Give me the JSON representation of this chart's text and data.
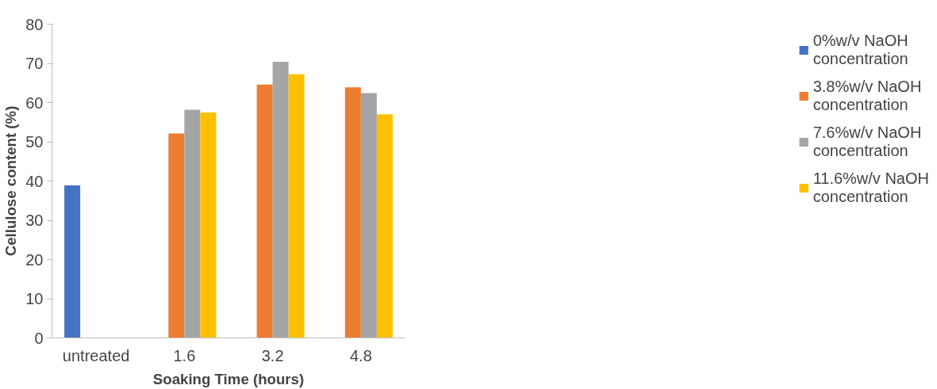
{
  "chart_data": {
    "type": "bar",
    "xlabel": "Soaking Time (hours)",
    "ylabel": "Cellulose content (%)",
    "categories": [
      "untreated",
      "1.6",
      "3.2",
      "4.8"
    ],
    "series": [
      {
        "name": "0%w/v NaOH concentration",
        "color": "#4472c4",
        "values": [
          38.9,
          null,
          null,
          null
        ]
      },
      {
        "name": "3.8%w/v NaOH concentration",
        "color": "#ed7d31",
        "values": [
          null,
          52.1,
          64.6,
          63.9
        ]
      },
      {
        "name": "7.6%w/v NaOH concentration",
        "color": "#a5a5a5",
        "values": [
          null,
          58.2,
          70.4,
          62.4
        ]
      },
      {
        "name": "11.6%w/v NaOH concentration",
        "color": "#ffc000",
        "values": [
          null,
          57.5,
          67.2,
          57.0
        ]
      }
    ],
    "ylim": [
      0,
      80
    ],
    "yticks": [
      0,
      10,
      20,
      30,
      40,
      50,
      60,
      70,
      80
    ],
    "grid": false,
    "legend": "right"
  }
}
